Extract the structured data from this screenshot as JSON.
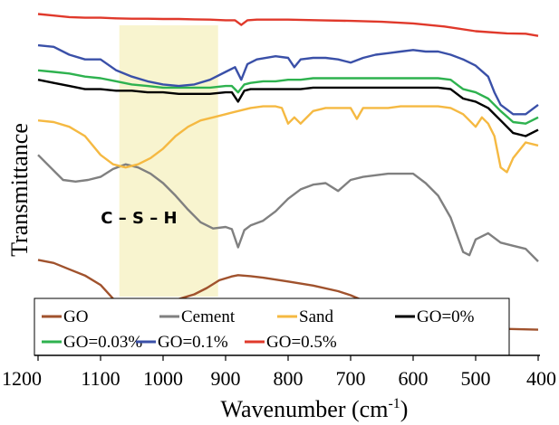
{
  "chart_data": {
    "type": "line",
    "xlabel_main": "Wavenumber (cm",
    "xlabel_sup": "-1",
    "xlabel_end": ")",
    "ylabel": "Transmittance",
    "xlim": [
      1200,
      400
    ],
    "x_reversed": true,
    "yticks_shown": false,
    "grid": false,
    "legend_position": "bottom",
    "xticks": [
      1200,
      1100,
      1000,
      900,
      800,
      700,
      600,
      500,
      400
    ],
    "xtick_labels": [
      "1200",
      "1100",
      "1000",
      "900",
      "800",
      "700",
      "600",
      "500",
      "400"
    ],
    "highlight": {
      "x_from": 1070,
      "x_to": 912,
      "color": "#f8f4cf"
    },
    "annotation": {
      "text": "C – S – H",
      "x": 1053
    },
    "series": [
      {
        "name": "GO",
        "color": "#a0522d",
        "x": [
          1200,
          1175,
          1150,
          1125,
          1100,
          1075,
          1050,
          1040,
          1025,
          1000,
          975,
          950,
          930,
          910,
          890,
          880,
          860,
          840,
          800,
          760,
          720,
          700,
          680,
          660,
          640,
          630,
          620,
          600,
          560,
          500,
          460,
          400
        ],
        "y": [
          30.5,
          29.5,
          27.5,
          25.5,
          22.5,
          17,
          13,
          12.5,
          13,
          15.5,
          18,
          19.5,
          21.5,
          24,
          25.2,
          25.6,
          25.3,
          24.8,
          23.6,
          22.3,
          20.5,
          19.2,
          17.5,
          15.5,
          12,
          10.5,
          9.5,
          9,
          8.7,
          8.5,
          8.5,
          8.2
        ]
      },
      {
        "name": "Cement",
        "color": "#808080",
        "x": [
          1200,
          1180,
          1160,
          1140,
          1120,
          1100,
          1080,
          1060,
          1040,
          1020,
          1000,
          980,
          960,
          940,
          920,
          900,
          890,
          880,
          870,
          860,
          840,
          820,
          800,
          780,
          760,
          740,
          720,
          700,
          680,
          660,
          640,
          620,
          600,
          580,
          560,
          540,
          520,
          510,
          500,
          480,
          460,
          440,
          420,
          400
        ],
        "y": [
          64,
          60,
          56,
          55.5,
          56,
          57,
          59.5,
          61,
          60,
          58,
          55,
          51,
          46.5,
          42.5,
          40.5,
          41,
          40.3,
          34.5,
          40,
          41.5,
          43,
          46,
          50,
          53,
          54.5,
          55,
          52.5,
          56,
          57,
          57.5,
          58,
          58,
          58,
          55,
          51,
          44,
          33,
          32,
          37,
          39,
          36,
          35,
          34,
          30
        ]
      },
      {
        "name": "Sand",
        "color": "#f5b942",
        "x": [
          1200,
          1175,
          1150,
          1125,
          1100,
          1080,
          1060,
          1040,
          1020,
          1000,
          980,
          960,
          940,
          920,
          900,
          880,
          860,
          840,
          820,
          810,
          800,
          790,
          780,
          760,
          740,
          720,
          700,
          690,
          680,
          660,
          640,
          620,
          600,
          580,
          560,
          540,
          520,
          510,
          500,
          490,
          480,
          470,
          460,
          450,
          440,
          420,
          400
        ],
        "y": [
          75,
          74.5,
          73,
          70,
          64,
          61,
          60,
          61,
          63,
          66,
          70,
          73,
          75,
          76,
          77,
          78,
          79,
          79.5,
          79.5,
          79,
          74,
          76,
          74,
          78,
          79,
          79,
          79,
          75.5,
          79,
          79,
          79,
          79.5,
          79.5,
          79.5,
          79.5,
          79,
          77,
          75,
          73,
          76,
          74,
          70,
          60,
          58.5,
          63,
          68,
          67
        ]
      },
      {
        "name": "GO=0%",
        "color": "#000000",
        "x": [
          1200,
          1175,
          1150,
          1125,
          1100,
          1075,
          1050,
          1025,
          1000,
          975,
          950,
          925,
          900,
          890,
          880,
          870,
          860,
          840,
          820,
          800,
          780,
          760,
          740,
          720,
          700,
          680,
          660,
          640,
          620,
          600,
          580,
          560,
          540,
          520,
          500,
          480,
          460,
          440,
          420,
          400
        ],
        "y": [
          88,
          87,
          86,
          85,
          85,
          84.5,
          84.5,
          84,
          84,
          83.5,
          83.5,
          83.5,
          84,
          84,
          81,
          84.5,
          85,
          85,
          85,
          85,
          85,
          85.5,
          85.5,
          85.5,
          85.5,
          85.5,
          85.5,
          85.5,
          85.5,
          85.5,
          85.5,
          85.5,
          85,
          82,
          81,
          79,
          75,
          71,
          70,
          72
        ]
      },
      {
        "name": "GO=0.03%",
        "color": "#2eb24f",
        "x": [
          1200,
          1175,
          1150,
          1125,
          1100,
          1075,
          1050,
          1025,
          1000,
          975,
          950,
          925,
          900,
          890,
          880,
          870,
          860,
          840,
          820,
          800,
          780,
          760,
          740,
          720,
          700,
          680,
          660,
          640,
          620,
          600,
          580,
          560,
          540,
          520,
          500,
          480,
          460,
          440,
          420,
          400
        ],
        "y": [
          91,
          90.5,
          90,
          89,
          88.5,
          87.5,
          86.5,
          86,
          85.5,
          85.5,
          85.5,
          85.5,
          86,
          86,
          84,
          86.5,
          87,
          87.5,
          87.5,
          88,
          88,
          88.5,
          88.5,
          88.5,
          88.5,
          88.5,
          88.5,
          88.5,
          88.5,
          88.5,
          88.5,
          88.5,
          88,
          85,
          84,
          82,
          78,
          74.5,
          74,
          76
        ]
      },
      {
        "name": "GO=0.1%",
        "color": "#3a50a8",
        "x": [
          1200,
          1175,
          1150,
          1125,
          1100,
          1075,
          1050,
          1025,
          1000,
          975,
          950,
          925,
          900,
          885,
          875,
          865,
          850,
          820,
          800,
          790,
          780,
          760,
          740,
          720,
          700,
          680,
          660,
          640,
          620,
          600,
          580,
          560,
          540,
          520,
          500,
          480,
          470,
          460,
          450,
          440,
          420,
          400
        ],
        "y": [
          99,
          98.5,
          96,
          94.5,
          94.5,
          91,
          89,
          87.5,
          86.5,
          86,
          86.5,
          88,
          90.5,
          92,
          88,
          93,
          94.5,
          95.5,
          95,
          92,
          94.5,
          95,
          95,
          94.5,
          93.5,
          95,
          96,
          96.5,
          97,
          97.5,
          97,
          97,
          96,
          94.5,
          92.5,
          89,
          84,
          80,
          78.5,
          77,
          77,
          80
        ]
      },
      {
        "name": "GO=0.5%",
        "color": "#e0392b",
        "x": [
          1200,
          1175,
          1150,
          1125,
          1100,
          1075,
          1050,
          1025,
          1000,
          975,
          950,
          925,
          900,
          885,
          875,
          865,
          850,
          800,
          750,
          700,
          650,
          600,
          550,
          500,
          450,
          420,
          400
        ],
        "y": [
          109,
          108.5,
          108,
          107.8,
          107.8,
          107.6,
          107.5,
          107.5,
          107.4,
          107.4,
          107.3,
          107.2,
          107,
          107,
          105.5,
          107,
          107.2,
          107.2,
          107,
          106.8,
          106.5,
          106,
          105,
          103.5,
          102.8,
          102.7,
          102
        ]
      }
    ]
  }
}
